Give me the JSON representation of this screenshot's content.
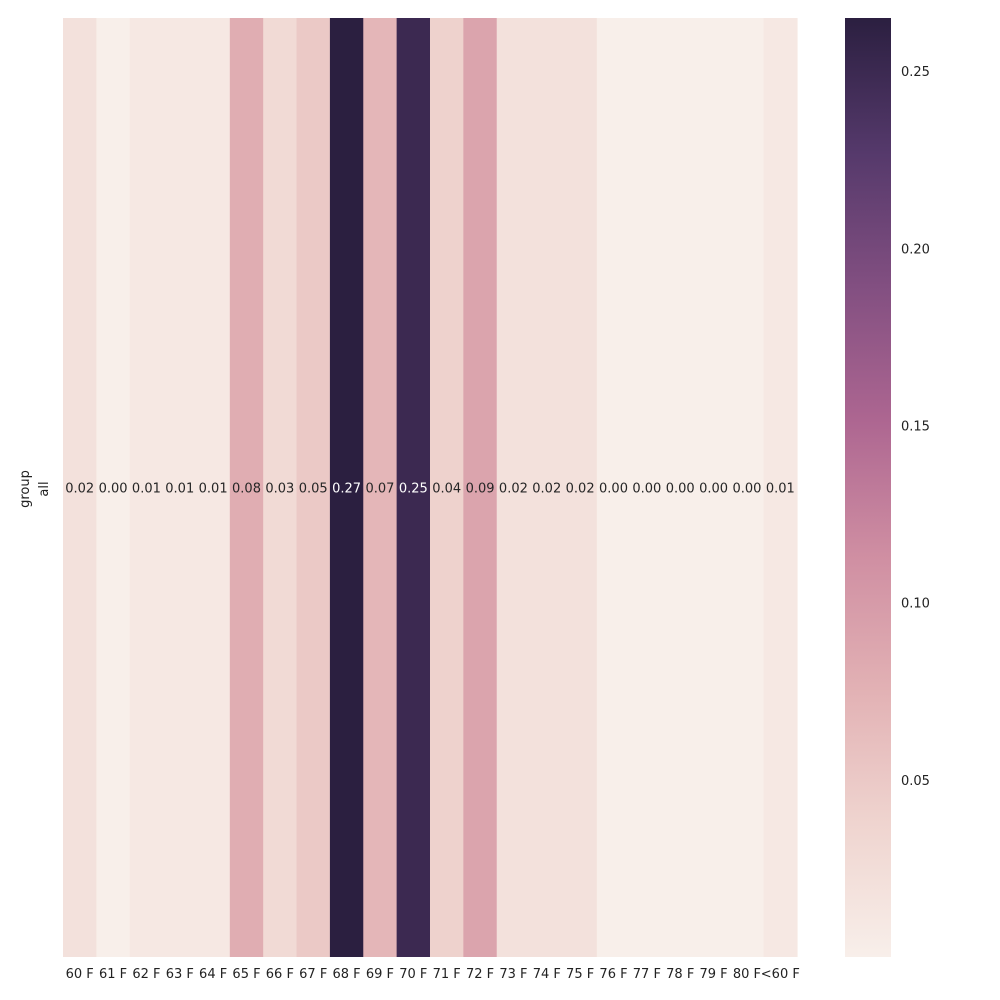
{
  "chart_data": {
    "type": "heatmap",
    "ylabel": "group",
    "y_categories": [
      "all"
    ],
    "x_categories": [
      "60 F",
      "61 F",
      "62 F",
      "63 F",
      "64 F",
      "65 F",
      "66 F",
      "67 F",
      "68 F",
      "69 F",
      "70 F",
      "71 F",
      "72 F",
      "73 F",
      "74 F",
      "75 F",
      "76 F",
      "77 F",
      "78 F",
      "79 F",
      "80 F",
      "<60 F"
    ],
    "values": [
      [
        0.02,
        0.0,
        0.01,
        0.01,
        0.01,
        0.08,
        0.03,
        0.05,
        0.27,
        0.07,
        0.25,
        0.04,
        0.09,
        0.02,
        0.02,
        0.02,
        0.0,
        0.0,
        0.0,
        0.0,
        0.0,
        0.01
      ]
    ],
    "display_values": [
      [
        "0.02",
        "0.00",
        "0.01",
        "0.01",
        "0.01",
        "0.08",
        "0.03",
        "0.05",
        "0.27",
        "0.07",
        "0.25",
        "0.04",
        "0.09",
        "0.02",
        "0.02",
        "0.02",
        "0.00",
        "0.00",
        "0.00",
        "0.00",
        "0.00",
        "0.01"
      ]
    ],
    "colorbar": {
      "range": [
        0.0,
        0.265
      ],
      "ticks": [
        0.05,
        0.1,
        0.15,
        0.2,
        0.25
      ],
      "tick_labels": [
        "0.05",
        "0.10",
        "0.15",
        "0.20",
        "0.25"
      ]
    },
    "colormap": {
      "name": "cubehelix-rose",
      "stops": [
        "#f8efea",
        "#efd4cf",
        "#e2b1b4",
        "#cf8ea2",
        "#ad6691",
        "#824f81",
        "#55396b",
        "#2b1f40"
      ]
    },
    "grid": false,
    "legend": "colorbar-right"
  }
}
